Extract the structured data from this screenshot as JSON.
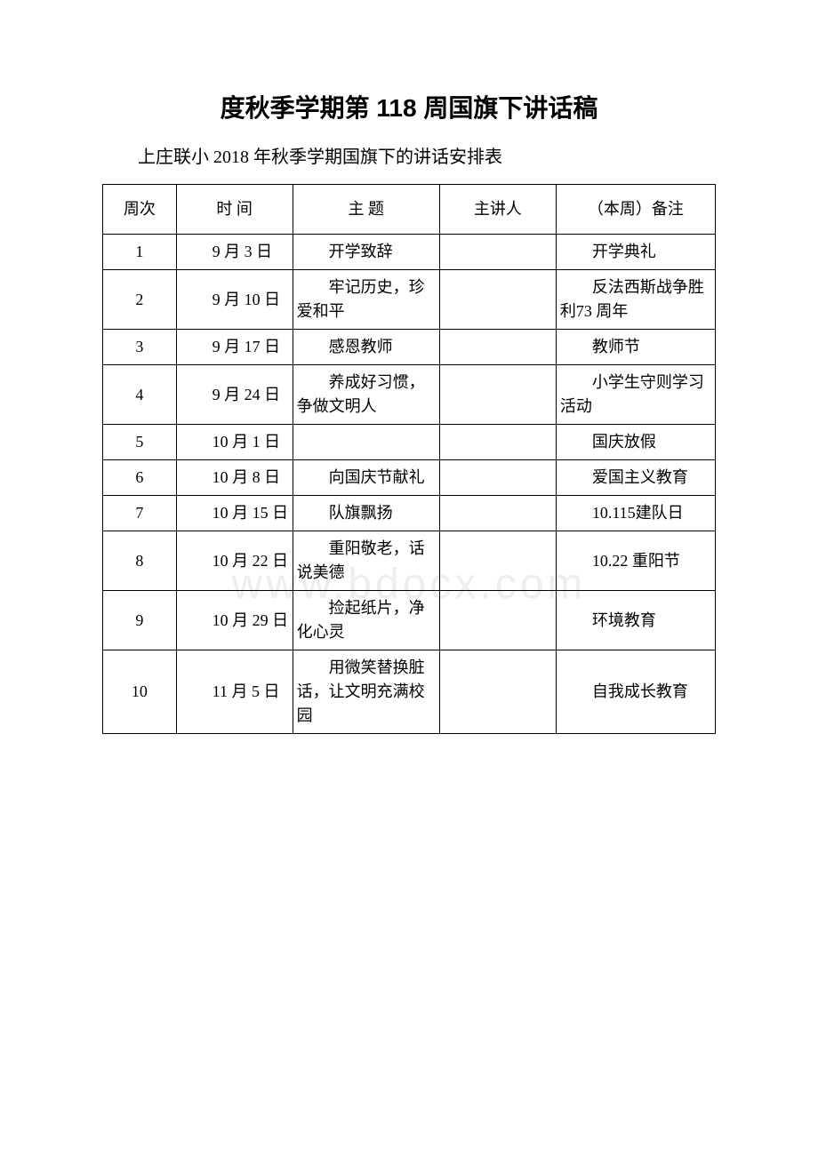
{
  "title": "度秋季学期第 118 周国旗下讲话稿",
  "subtitle": "上庄联小 2018 年秋季学期国旗下的讲话安排表",
  "watermark": "www.bdocx.com",
  "table": {
    "headers": {
      "week": "周次",
      "time": "时 间",
      "topic": "主 题",
      "speaker": "主讲人",
      "note": "（本周）备注"
    },
    "rows": [
      {
        "week": "1",
        "time": "9 月 3 日",
        "topic": "开学致辞",
        "speaker": "",
        "note": "开学典礼"
      },
      {
        "week": "2",
        "time": "9 月 10 日",
        "topic": "牢记历史，珍爱和平",
        "speaker": "",
        "note": "反法西斯战争胜利73 周年"
      },
      {
        "week": "3",
        "time": "9 月 17 日",
        "topic": "感恩教师",
        "speaker": "",
        "note": "教师节"
      },
      {
        "week": "4",
        "time": "9 月 24 日",
        "topic": "养成好习惯，争做文明人",
        "speaker": "",
        "note": "小学生守则学习活动"
      },
      {
        "week": "5",
        "time": "10 月 1 日",
        "topic": "",
        "speaker": "",
        "note": "国庆放假"
      },
      {
        "week": "6",
        "time": "10 月 8 日",
        "topic": "向国庆节献礼",
        "speaker": "",
        "note": "爱国主义教育"
      },
      {
        "week": "7",
        "time": "10 月 15 日",
        "topic": "队旗飘扬",
        "speaker": "",
        "note": "10.115建队日"
      },
      {
        "week": "8",
        "time": "10 月 22 日",
        "topic": "重阳敬老，话说美德",
        "speaker": "",
        "note": "10.22 重阳节"
      },
      {
        "week": "9",
        "time": "10 月 29 日",
        "topic": "捡起纸片，净化心灵",
        "speaker": "",
        "note": "环境教育"
      },
      {
        "week": "10",
        "time": "11 月 5 日",
        "topic": "用微笑替换脏话，让文明充满校园",
        "speaker": "",
        "note": "自我成长教育"
      }
    ]
  }
}
